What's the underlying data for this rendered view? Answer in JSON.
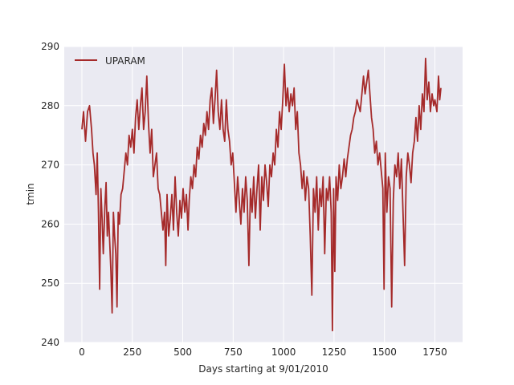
{
  "chart_data": {
    "type": "line",
    "title": "",
    "xlabel": "Days starting at 9/01/2010",
    "ylabel": "tmin",
    "xlim": [
      -87.5,
      1887.5
    ],
    "ylim": [
      240,
      290
    ],
    "xticks": [
      0,
      250,
      500,
      750,
      1000,
      1250,
      1500,
      1750
    ],
    "xtick_labels": [
      "0",
      "250",
      "500",
      "750",
      "1000",
      "1250",
      "1500",
      "1750"
    ],
    "yticks": [
      240,
      250,
      260,
      270,
      280,
      290
    ],
    "ytick_labels": [
      "240",
      "250",
      "260",
      "270",
      "280",
      "290"
    ],
    "grid": true,
    "legend_position": "upper-left",
    "background_color": "#eaeaf2",
    "grid_color": "#ffffff",
    "series": [
      {
        "name": "UPARAM",
        "color": "#a52a2a",
        "points": [
          [
            0,
            276
          ],
          [
            8,
            279
          ],
          [
            18,
            274
          ],
          [
            28,
            279
          ],
          [
            38,
            280
          ],
          [
            48,
            276
          ],
          [
            55,
            272
          ],
          [
            62,
            270
          ],
          [
            70,
            265
          ],
          [
            76,
            272
          ],
          [
            82,
            262
          ],
          [
            88,
            249
          ],
          [
            94,
            266
          ],
          [
            100,
            261
          ],
          [
            106,
            255
          ],
          [
            114,
            263
          ],
          [
            120,
            267
          ],
          [
            126,
            258
          ],
          [
            132,
            262
          ],
          [
            138,
            257
          ],
          [
            144,
            252
          ],
          [
            150,
            245
          ],
          [
            156,
            262
          ],
          [
            162,
            258
          ],
          [
            168,
            255
          ],
          [
            174,
            246
          ],
          [
            180,
            262
          ],
          [
            186,
            260
          ],
          [
            194,
            265
          ],
          [
            202,
            266
          ],
          [
            210,
            269
          ],
          [
            218,
            272
          ],
          [
            226,
            270
          ],
          [
            234,
            275
          ],
          [
            242,
            273
          ],
          [
            250,
            276
          ],
          [
            258,
            272
          ],
          [
            266,
            278
          ],
          [
            274,
            281
          ],
          [
            282,
            276
          ],
          [
            290,
            280
          ],
          [
            298,
            283
          ],
          [
            306,
            276
          ],
          [
            314,
            279
          ],
          [
            322,
            285
          ],
          [
            330,
            277
          ],
          [
            338,
            272
          ],
          [
            346,
            276
          ],
          [
            354,
            268
          ],
          [
            362,
            270
          ],
          [
            370,
            272
          ],
          [
            378,
            266
          ],
          [
            386,
            265
          ],
          [
            394,
            262
          ],
          [
            402,
            259
          ],
          [
            410,
            262
          ],
          [
            416,
            253
          ],
          [
            422,
            265
          ],
          [
            430,
            258
          ],
          [
            438,
            261
          ],
          [
            446,
            265
          ],
          [
            454,
            259
          ],
          [
            462,
            268
          ],
          [
            470,
            262
          ],
          [
            478,
            258
          ],
          [
            486,
            264
          ],
          [
            494,
            261
          ],
          [
            502,
            266
          ],
          [
            510,
            262
          ],
          [
            518,
            265
          ],
          [
            526,
            259
          ],
          [
            532,
            264
          ],
          [
            540,
            268
          ],
          [
            548,
            266
          ],
          [
            556,
            270
          ],
          [
            564,
            268
          ],
          [
            572,
            273
          ],
          [
            580,
            271
          ],
          [
            588,
            275
          ],
          [
            596,
            273
          ],
          [
            604,
            277
          ],
          [
            612,
            275
          ],
          [
            620,
            279
          ],
          [
            628,
            276
          ],
          [
            636,
            281
          ],
          [
            644,
            283
          ],
          [
            652,
            277
          ],
          [
            660,
            281
          ],
          [
            668,
            286
          ],
          [
            676,
            279
          ],
          [
            684,
            276
          ],
          [
            692,
            281
          ],
          [
            700,
            276
          ],
          [
            708,
            274
          ],
          [
            716,
            281
          ],
          [
            724,
            276
          ],
          [
            732,
            274
          ],
          [
            740,
            270
          ],
          [
            748,
            272
          ],
          [
            756,
            267
          ],
          [
            764,
            262
          ],
          [
            772,
            268
          ],
          [
            780,
            264
          ],
          [
            788,
            260
          ],
          [
            796,
            266
          ],
          [
            804,
            262
          ],
          [
            812,
            268
          ],
          [
            820,
            264
          ],
          [
            828,
            253
          ],
          [
            836,
            266
          ],
          [
            844,
            262
          ],
          [
            852,
            268
          ],
          [
            860,
            261
          ],
          [
            868,
            266
          ],
          [
            876,
            270
          ],
          [
            884,
            259
          ],
          [
            892,
            268
          ],
          [
            900,
            264
          ],
          [
            908,
            270
          ],
          [
            916,
            267
          ],
          [
            924,
            263
          ],
          [
            932,
            270
          ],
          [
            940,
            268
          ],
          [
            948,
            272
          ],
          [
            956,
            270
          ],
          [
            964,
            276
          ],
          [
            972,
            273
          ],
          [
            980,
            279
          ],
          [
            988,
            276
          ],
          [
            996,
            281
          ],
          [
            1004,
            287
          ],
          [
            1012,
            280
          ],
          [
            1020,
            283
          ],
          [
            1028,
            279
          ],
          [
            1036,
            282
          ],
          [
            1044,
            280
          ],
          [
            1052,
            283
          ],
          [
            1060,
            276
          ],
          [
            1068,
            279
          ],
          [
            1076,
            272
          ],
          [
            1084,
            270
          ],
          [
            1092,
            266
          ],
          [
            1100,
            269
          ],
          [
            1108,
            264
          ],
          [
            1116,
            268
          ],
          [
            1124,
            266
          ],
          [
            1132,
            258
          ],
          [
            1140,
            248
          ],
          [
            1148,
            266
          ],
          [
            1156,
            262
          ],
          [
            1164,
            268
          ],
          [
            1172,
            259
          ],
          [
            1180,
            266
          ],
          [
            1188,
            263
          ],
          [
            1196,
            268
          ],
          [
            1204,
            255
          ],
          [
            1212,
            266
          ],
          [
            1220,
            264
          ],
          [
            1228,
            268
          ],
          [
            1236,
            262
          ],
          [
            1242,
            242
          ],
          [
            1248,
            266
          ],
          [
            1254,
            252
          ],
          [
            1260,
            268
          ],
          [
            1268,
            264
          ],
          [
            1276,
            270
          ],
          [
            1284,
            266
          ],
          [
            1292,
            268
          ],
          [
            1300,
            271
          ],
          [
            1308,
            268
          ],
          [
            1316,
            271
          ],
          [
            1324,
            273
          ],
          [
            1332,
            275
          ],
          [
            1340,
            276
          ],
          [
            1348,
            278
          ],
          [
            1356,
            279
          ],
          [
            1364,
            281
          ],
          [
            1372,
            280
          ],
          [
            1380,
            279
          ],
          [
            1388,
            282
          ],
          [
            1396,
            285
          ],
          [
            1404,
            282
          ],
          [
            1412,
            284
          ],
          [
            1420,
            286
          ],
          [
            1428,
            282
          ],
          [
            1436,
            278
          ],
          [
            1444,
            276
          ],
          [
            1452,
            272
          ],
          [
            1460,
            274
          ],
          [
            1468,
            270
          ],
          [
            1476,
            272
          ],
          [
            1484,
            269
          ],
          [
            1492,
            266
          ],
          [
            1498,
            249
          ],
          [
            1504,
            272
          ],
          [
            1512,
            262
          ],
          [
            1520,
            268
          ],
          [
            1528,
            266
          ],
          [
            1536,
            246
          ],
          [
            1544,
            264
          ],
          [
            1552,
            270
          ],
          [
            1560,
            268
          ],
          [
            1568,
            272
          ],
          [
            1576,
            266
          ],
          [
            1584,
            271
          ],
          [
            1592,
            262
          ],
          [
            1600,
            253
          ],
          [
            1608,
            268
          ],
          [
            1616,
            272
          ],
          [
            1624,
            270
          ],
          [
            1632,
            267
          ],
          [
            1640,
            272
          ],
          [
            1648,
            274
          ],
          [
            1656,
            278
          ],
          [
            1664,
            274
          ],
          [
            1672,
            280
          ],
          [
            1680,
            276
          ],
          [
            1688,
            282
          ],
          [
            1696,
            279
          ],
          [
            1704,
            288
          ],
          [
            1712,
            281
          ],
          [
            1720,
            284
          ],
          [
            1728,
            279
          ],
          [
            1736,
            282
          ],
          [
            1744,
            280
          ],
          [
            1750,
            281
          ],
          [
            1760,
            279
          ],
          [
            1768,
            285
          ],
          [
            1774,
            281
          ],
          [
            1780,
            283
          ]
        ]
      }
    ]
  }
}
